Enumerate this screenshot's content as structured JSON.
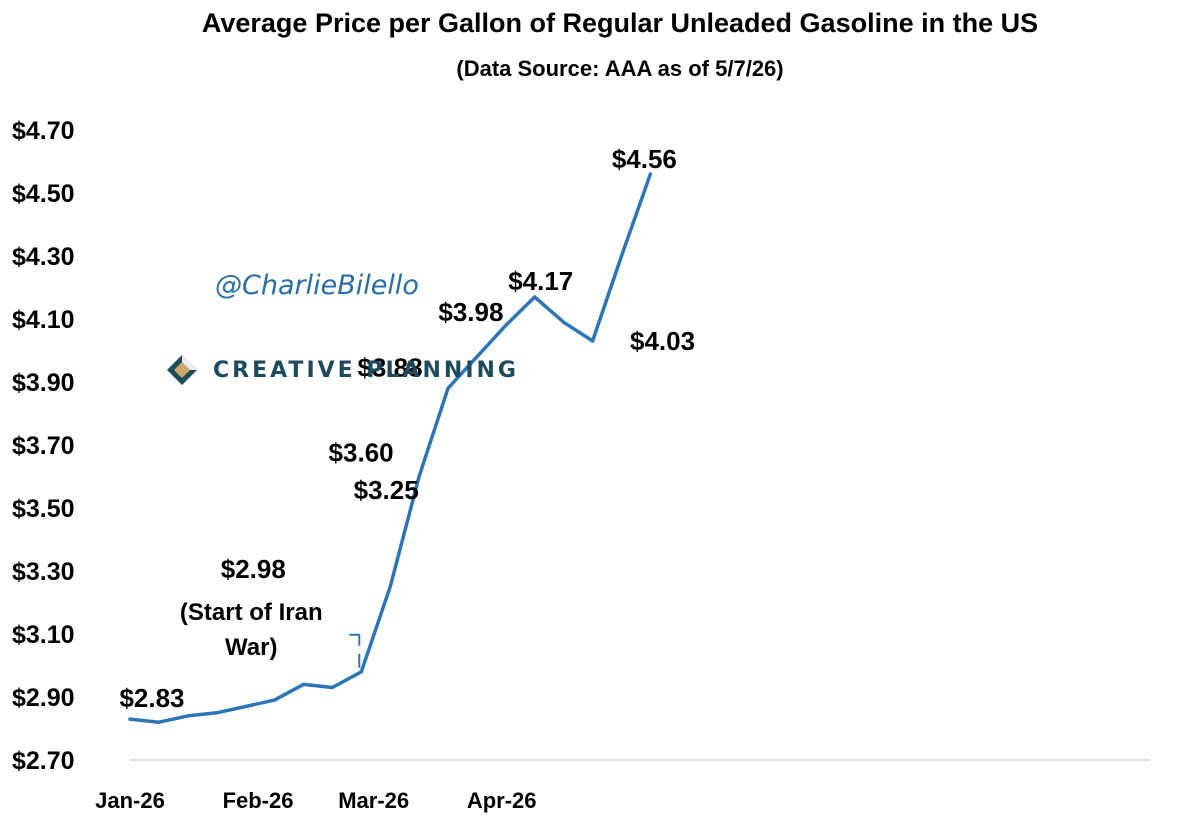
{
  "chart_data": {
    "type": "line",
    "title": "Average Price per Gallon of Regular Unleaded Gasoline in the US",
    "subtitle": "(Data Source: AAA as of 5/7/26)",
    "x_tick_labels": [
      "Jan-26",
      "Feb-26",
      "Mar-26",
      "Apr-26"
    ],
    "y_tick_labels": [
      "$2.70",
      "$2.90",
      "$3.10",
      "$3.30",
      "$3.50",
      "$3.70",
      "$3.90",
      "$4.10",
      "$4.30",
      "$4.50",
      "$4.70"
    ],
    "ylim": [
      2.7,
      4.7
    ],
    "grid": false,
    "series": [
      {
        "color": "#2e75b6",
        "x": [
          "2026-01-01",
          "2026-01-08",
          "2026-01-15",
          "2026-01-22",
          "2026-01-29",
          "2026-02-05",
          "2026-02-12",
          "2026-02-19",
          "2026-02-26",
          "2026-03-05",
          "2026-03-12",
          "2026-03-19",
          "2026-03-26",
          "2026-04-02",
          "2026-04-09",
          "2026-04-16",
          "2026-04-23",
          "2026-04-30",
          "2026-05-07"
        ],
        "values": [
          2.83,
          2.82,
          2.84,
          2.85,
          2.87,
          2.89,
          2.94,
          2.93,
          2.98,
          3.25,
          3.6,
          3.88,
          3.98,
          4.08,
          4.17,
          4.09,
          4.03,
          4.3,
          4.56
        ]
      }
    ],
    "data_labels": [
      {
        "x": "2026-01-01",
        "value": 2.83,
        "text": "$2.83"
      },
      {
        "x": "2026-02-26",
        "value": 2.98,
        "text": "$2.98"
      },
      {
        "x": "2026-03-05",
        "value": 3.25,
        "text": "$3.25"
      },
      {
        "x": "2026-03-12",
        "value": 3.6,
        "text": "$3.60"
      },
      {
        "x": "2026-03-19",
        "value": 3.88,
        "text": "$3.88"
      },
      {
        "x": "2026-03-26",
        "value": 3.98,
        "text": "$3.98"
      },
      {
        "x": "2026-04-09",
        "value": 4.17,
        "text": "$4.17"
      },
      {
        "x": "2026-04-23",
        "value": 4.03,
        "text": "$4.03"
      },
      {
        "x": "2026-05-07",
        "value": 4.56,
        "text": "$4.56"
      }
    ],
    "annotations": [
      {
        "text_lines": [
          "(Start of Iran",
          "War)"
        ],
        "x": "2026-02-26",
        "value": 2.98
      }
    ]
  },
  "watermark": "@CharlieBilello",
  "brand": {
    "name": "CREATIVE PLANNING",
    "logo_colors": [
      "#1e4a5c",
      "#c9a86a"
    ]
  }
}
